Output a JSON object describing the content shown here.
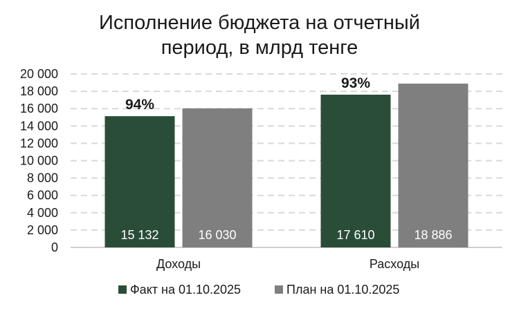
{
  "chart_data": {
    "type": "bar",
    "title_lines": [
      "Исполнение бюджета на отчетный",
      "период, в млрд тенге"
    ],
    "categories": [
      "Доходы",
      "Расходы"
    ],
    "series": [
      {
        "name": "Факт на 01.10.2025",
        "color": "#2a4d38",
        "values": [
          15132,
          17610
        ],
        "labels": [
          "15 132",
          "17 610"
        ]
      },
      {
        "name": "План на 01.10.2025",
        "color": "#7f7f7f",
        "values": [
          16030,
          18886
        ],
        "labels": [
          "16 030",
          "18 886"
        ]
      }
    ],
    "annotations": [
      "94%",
      "93%"
    ],
    "ylim": [
      0,
      20000
    ],
    "yticks": [
      0,
      2000,
      4000,
      6000,
      8000,
      10000,
      12000,
      14000,
      16000,
      18000,
      20000
    ],
    "ytick_labels": [
      "0",
      "2 000",
      "4 000",
      "6 000",
      "8 000",
      "10 000",
      "12 000",
      "14 000",
      "16 000",
      "18 000",
      "20 000"
    ],
    "grid": true,
    "legend_position": "bottom"
  }
}
